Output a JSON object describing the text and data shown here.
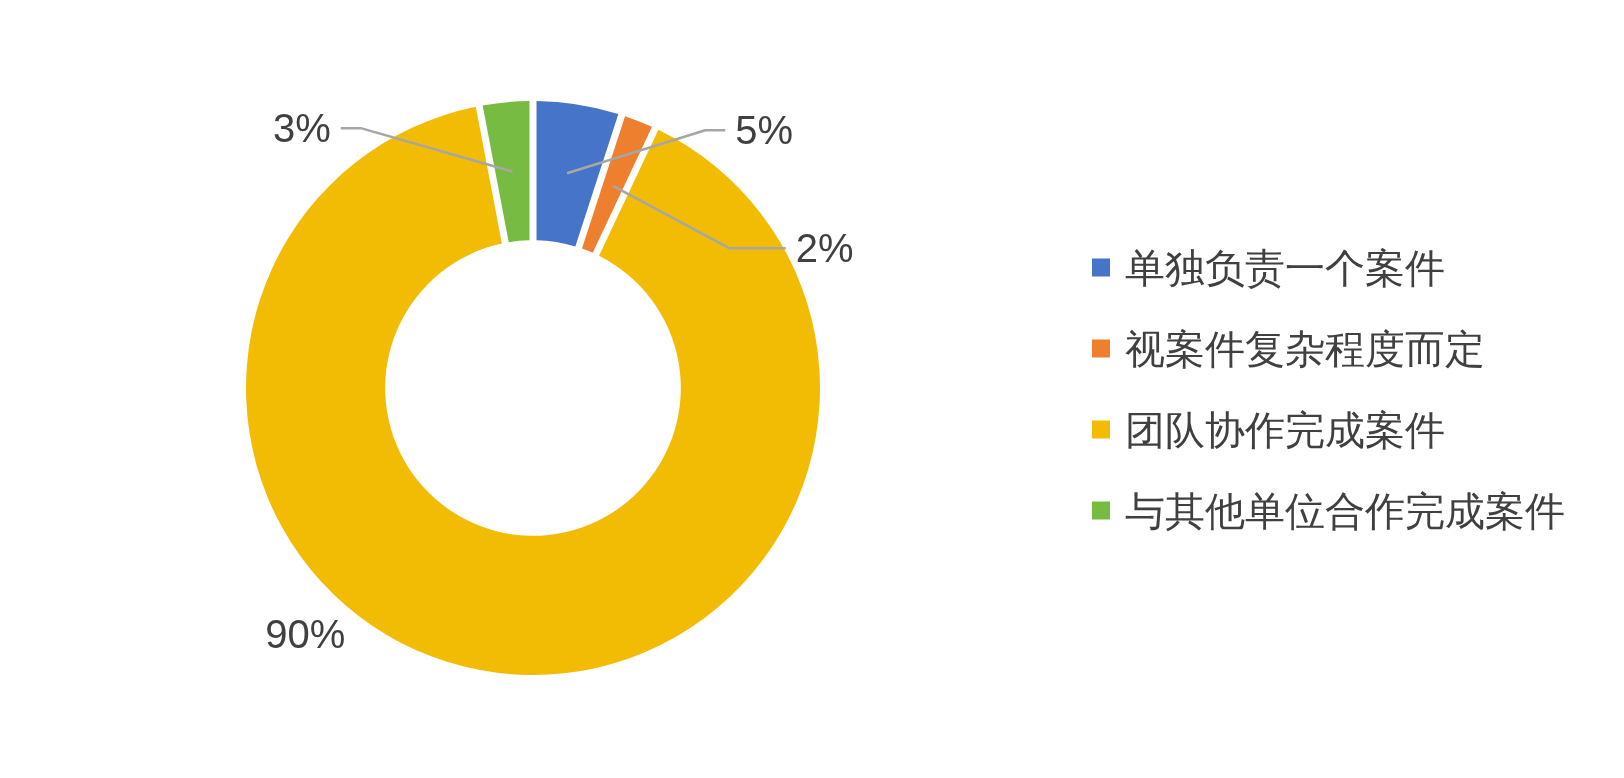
{
  "chart_data": {
    "type": "donut",
    "categories": [
      "单独负责一个案件",
      "视案件复杂程度而定",
      "团队协作完成案件",
      "与其他单位合作完成案件"
    ],
    "values": [
      5,
      2,
      90,
      3
    ],
    "colors": [
      "#4674c8",
      "#ed7f2f",
      "#f2bc05",
      "#78bb42"
    ],
    "value_labels": [
      "5%",
      "2%",
      "90%",
      "3%"
    ],
    "legend": "right"
  }
}
